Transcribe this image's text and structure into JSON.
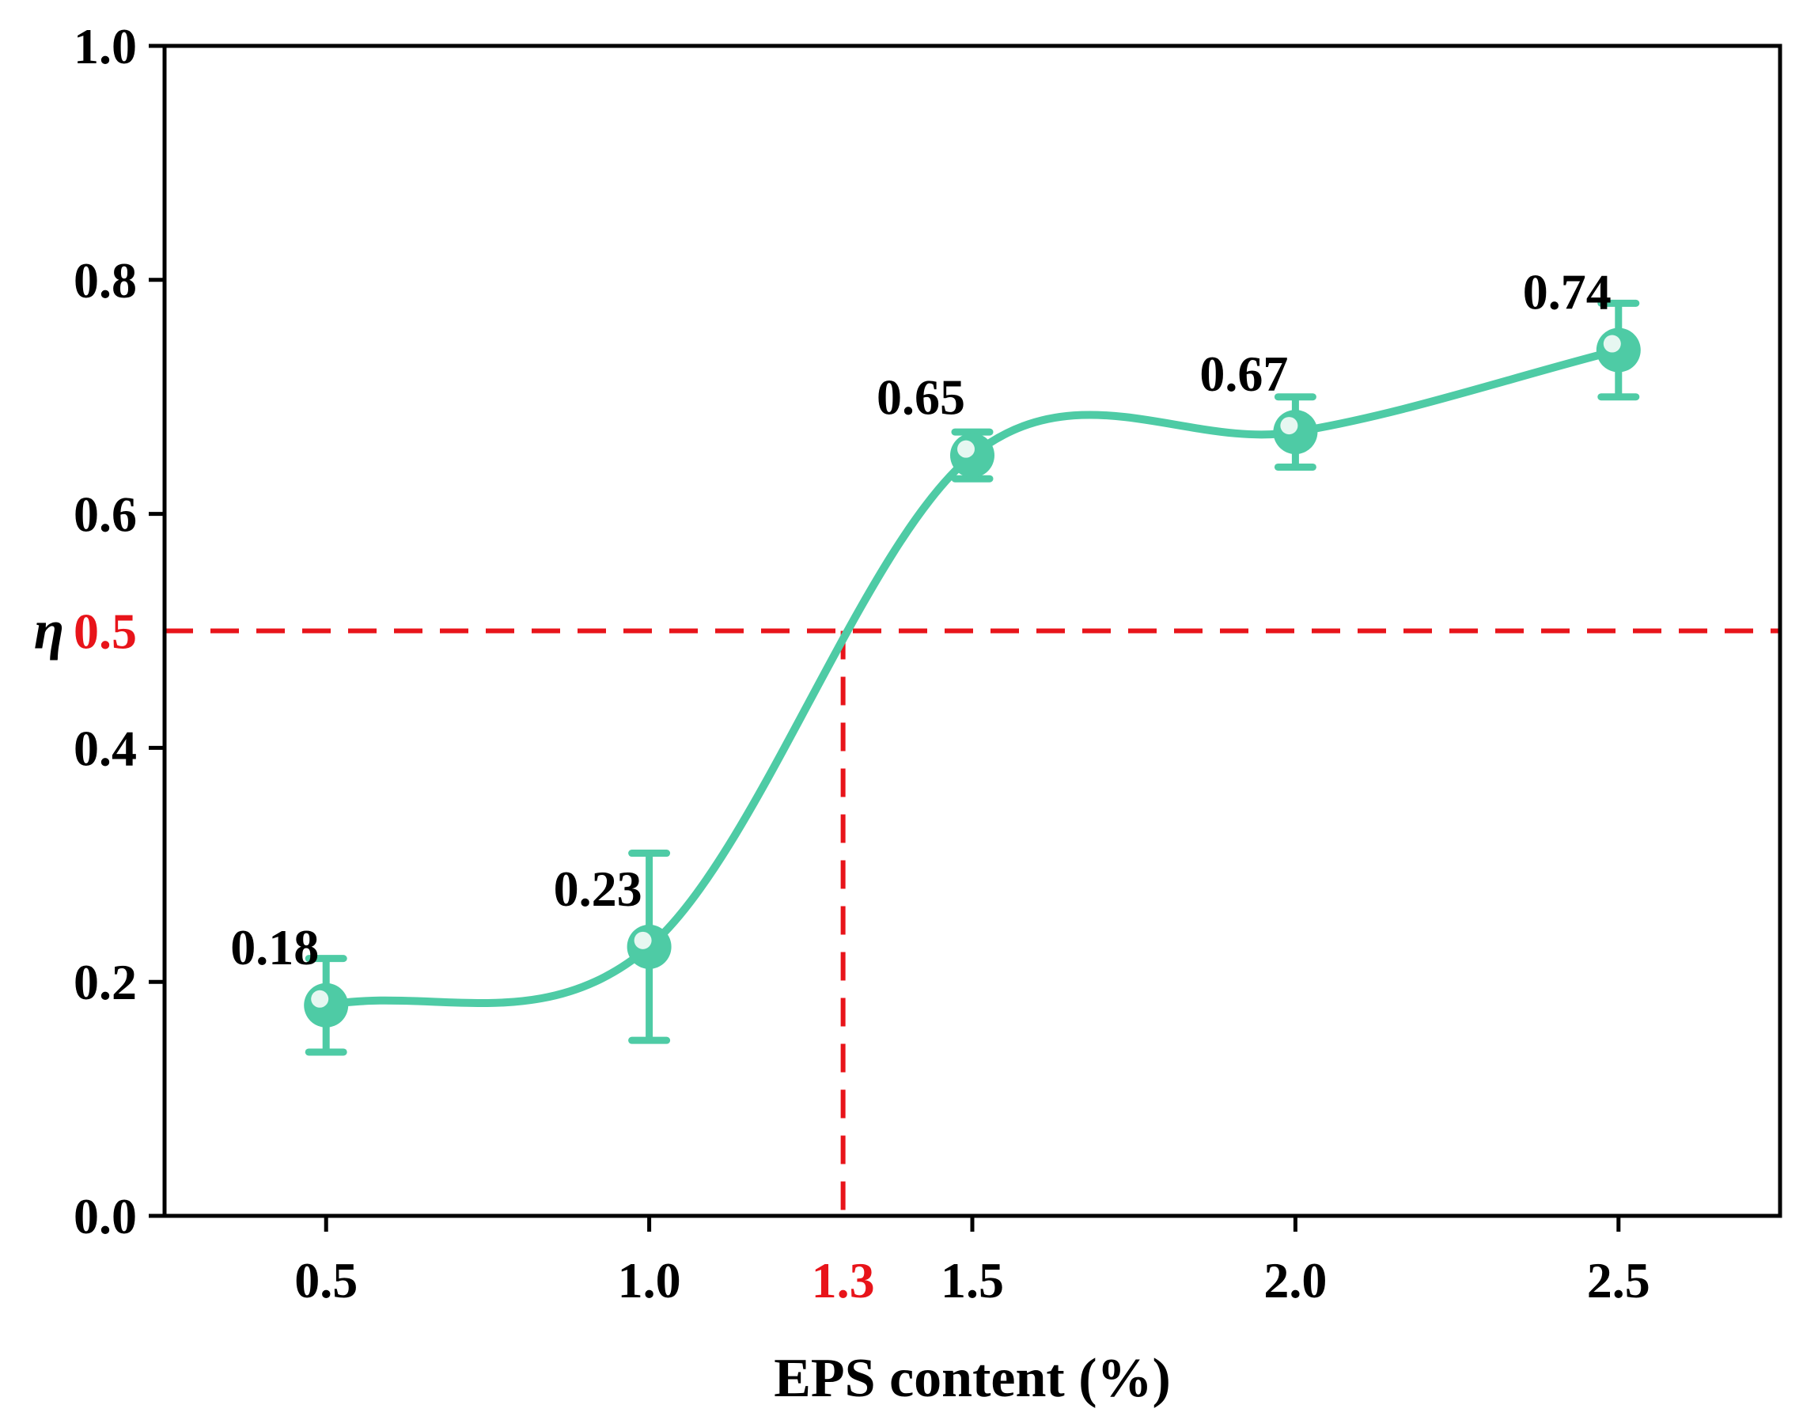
{
  "chart_data": {
    "type": "line",
    "title": "",
    "xlabel": "EPS content (%)",
    "ylabel": "η",
    "xlim": [
      0.25,
      2.75
    ],
    "ylim": [
      0.0,
      1.0
    ],
    "x_ticks": [
      "0.5",
      "1.0",
      "1.5",
      "2.0",
      "2.5"
    ],
    "x_tick_values": [
      0.5,
      1.0,
      1.5,
      2.0,
      2.5
    ],
    "y_ticks": [
      "0.0",
      "0.2",
      "0.4",
      "0.6",
      "0.8",
      "1.0"
    ],
    "y_tick_values": [
      0.0,
      0.2,
      0.4,
      0.6,
      0.8,
      1.0
    ],
    "grid": false,
    "series": [
      {
        "name": "η",
        "color": "#4ecba5",
        "smooth": true,
        "x": [
          0.5,
          1.0,
          1.5,
          2.0,
          2.5
        ],
        "y": [
          0.18,
          0.23,
          0.65,
          0.67,
          0.74
        ],
        "error_low": [
          0.04,
          0.08,
          0.02,
          0.03,
          0.04
        ],
        "error_high": [
          0.04,
          0.08,
          0.02,
          0.03,
          0.04
        ],
        "data_labels": [
          "0.18",
          "0.23",
          "0.65",
          "0.67",
          "0.74"
        ]
      }
    ],
    "reference_lines": {
      "color": "#e8141a",
      "horizontal": {
        "y": 0.5,
        "label": "0.5"
      },
      "vertical": {
        "x": 1.3,
        "label": "1.3"
      }
    }
  }
}
